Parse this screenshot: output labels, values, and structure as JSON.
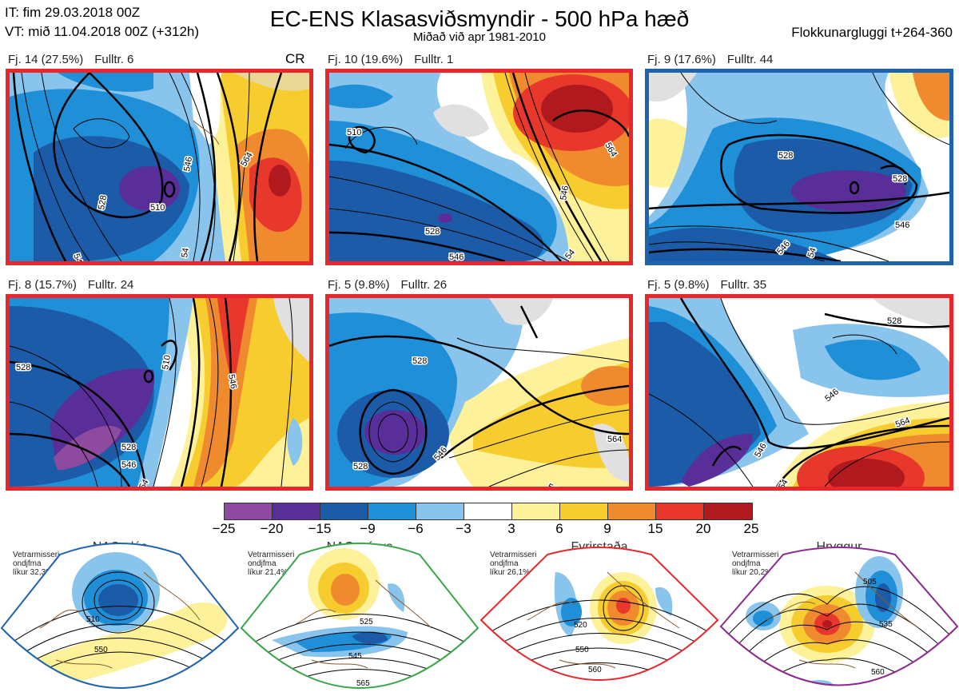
{
  "header": {
    "line1": "IT: fim 29.03.2018 00Z",
    "line2": "VT: mið 11.04.2018 00Z  (+312h)",
    "title": "EC-ENS Klasasviðsmyndir - 500 hPa hæð",
    "subtitle": "Miðað við apr 1981-2010",
    "window": "Flokkunargluggi t+264-360"
  },
  "panels": [
    {
      "label": "Fj. 14 (27.5%)",
      "members": "Fulltr. 6",
      "tag": "CR",
      "frame_color": "#e8262b"
    },
    {
      "label": "Fj. 10 (19.6%)",
      "members": "Fulltr. 1",
      "tag": "",
      "frame_color": "#e8262b"
    },
    {
      "label": "Fj. 9 (17.6%)",
      "members": "Fulltr. 44",
      "tag": "",
      "frame_color": "#1d63ae"
    },
    {
      "label": "Fj. 8 (15.7%)",
      "members": "Fulltr. 24",
      "tag": "",
      "frame_color": "#e8262b"
    },
    {
      "label": "Fj. 5 (9.8%)",
      "members": "Fulltr. 26",
      "tag": "",
      "frame_color": "#e8262b"
    },
    {
      "label": "Fj. 5 (9.8%)",
      "members": "Fulltr. 35",
      "tag": "",
      "frame_color": "#1d63ae"
    }
  ],
  "contour_labels": {
    "p0": [
      "510",
      "528",
      "546",
      "564",
      "546",
      "54"
    ],
    "p1": [
      "510",
      "528",
      "546",
      "546",
      "564",
      "54"
    ],
    "p2": [
      "528",
      "528",
      "546",
      "546",
      "54"
    ],
    "p3": [
      "528",
      "510",
      "528",
      "546",
      "546",
      "54"
    ],
    "p4": [
      "528",
      "528",
      "546",
      "546",
      "564"
    ],
    "p5": [
      "528",
      "546",
      "564",
      "546",
      "54"
    ]
  },
  "colorbar": {
    "ticks": [
      "−25",
      "−20",
      "−15",
      "−9",
      "−6",
      "−3",
      "3",
      "6",
      "9",
      "15",
      "20",
      "25"
    ],
    "colors": [
      "#8e4a9e",
      "#5a2e99",
      "#1c5ba8",
      "#1f8fd8",
      "#89c4ec",
      "#ffffff",
      "#fdf29a",
      "#f7cc2e",
      "#f08a2f",
      "#e8382c",
      "#b01a1f"
    ]
  },
  "regimes": [
    {
      "name": "NAO plús",
      "note": [
        "Vetrarmisseri",
        "ondjfma",
        "líkur 32,3%"
      ],
      "color": "#1d63ae",
      "dot_color": "#1d5fae",
      "labels": [
        "510",
        "550"
      ]
    },
    {
      "name": "NAO mínus",
      "note": [
        "Vetrarmisseri",
        "ondjfma",
        "líkur 21,4%"
      ],
      "color": "#3aa64a",
      "dot_color": "#2fa84a",
      "labels": [
        "525",
        "545",
        "565"
      ]
    },
    {
      "name": "Fyrirstaða",
      "note": [
        "Vetrarmisseri",
        "ondjfma",
        "líkur 26,1%"
      ],
      "color": "#e8262b",
      "dot_color": "#e8262b",
      "labels": [
        "520",
        "550",
        "560"
      ]
    },
    {
      "name": "Hryggur",
      "note": [
        "Vetrarmisseri",
        "ondjfma",
        "líkur 20,2%"
      ],
      "color": "#8e2a8e",
      "dot_color": "#ec7ae8",
      "labels": [
        "505",
        "535",
        "560"
      ]
    }
  ]
}
